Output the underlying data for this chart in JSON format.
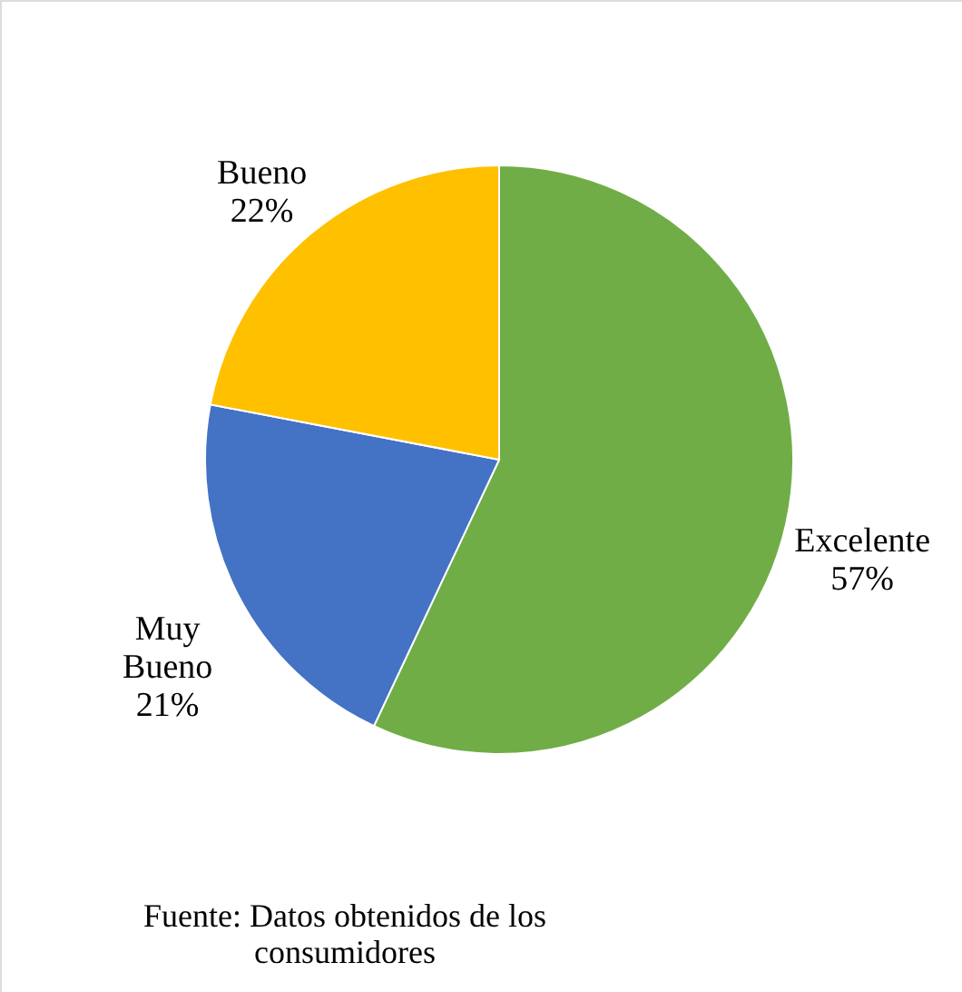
{
  "chart_data": {
    "type": "pie",
    "categories": [
      "Excelente",
      "Muy Bueno",
      "Bueno"
    ],
    "values": [
      57,
      21,
      22
    ],
    "value_labels": [
      "57%",
      "21%",
      "22%"
    ],
    "colors": [
      "#70ad47",
      "#4472c4",
      "#ffc000"
    ],
    "annotations": [
      "Fuente: Datos obtenidos de los consumidores"
    ]
  }
}
